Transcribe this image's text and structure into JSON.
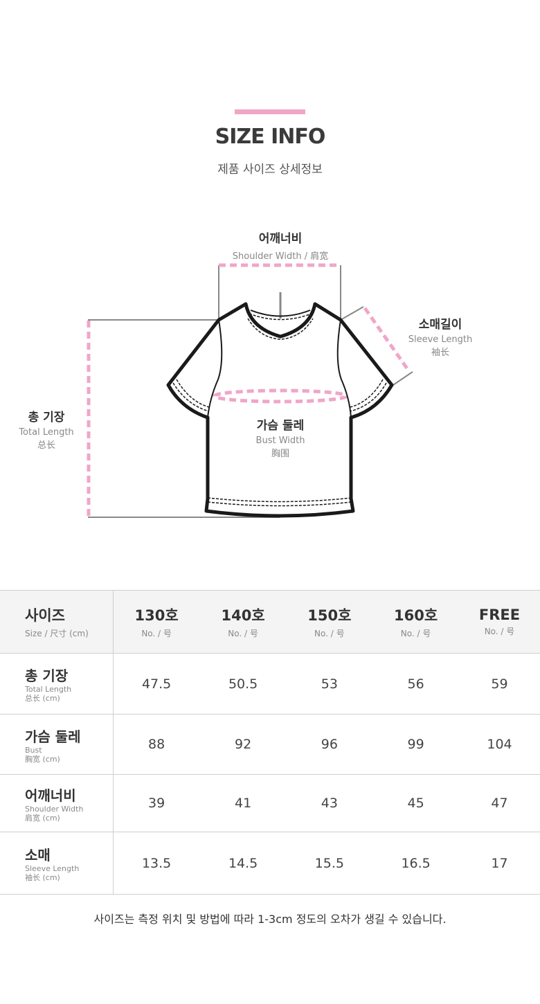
{
  "header": {
    "title": "SIZE INFO",
    "subtitle": "제품 사이즈 상세정보",
    "accent_color": "#f0a6c8"
  },
  "diagram": {
    "shoulder": {
      "ko": "어깨너비",
      "en": "Shoulder Width / 肩宽"
    },
    "sleeve": {
      "ko": "소매길이",
      "en": "Sleeve Length",
      "zh": "袖长"
    },
    "total": {
      "ko": "총 기장",
      "en": "Total Length",
      "zh": "总长"
    },
    "bust": {
      "ko": "가슴 둘레",
      "en": "Bust Width",
      "zh": "胸围"
    }
  },
  "table": {
    "header": {
      "ko": "사이즈",
      "en": "Size / 尺寸 (cm)"
    },
    "columns": [
      {
        "size": "130호",
        "sub": "No. / 号"
      },
      {
        "size": "140호",
        "sub": "No. / 号"
      },
      {
        "size": "150호",
        "sub": "No. / 号"
      },
      {
        "size": "160호",
        "sub": "No. / 号"
      },
      {
        "size": "FREE",
        "sub": "No. / 号"
      }
    ],
    "rows": [
      {
        "ko": "총 기장",
        "en": "Total Length",
        "zh": "总长 (cm)",
        "values": [
          "47.5",
          "50.5",
          "53",
          "56",
          "59"
        ]
      },
      {
        "ko": "가슴 둘레",
        "en": "Bust",
        "zh": "胸宽 (cm)",
        "values": [
          "88",
          "92",
          "96",
          "99",
          "104"
        ]
      },
      {
        "ko": "어깨너비",
        "en": "Shoulder Width",
        "zh": "肩宽 (cm)",
        "values": [
          "39",
          "41",
          "43",
          "45",
          "47"
        ]
      },
      {
        "ko": "소매",
        "en": "Sleeve Length",
        "zh": "袖长 (cm)",
        "values": [
          "13.5",
          "14.5",
          "15.5",
          "16.5",
          "17"
        ]
      }
    ]
  },
  "note": "사이즈는 측정 위치 및 방법에 따라 1-3cm 정도의 오차가 생길 수 있습니다."
}
